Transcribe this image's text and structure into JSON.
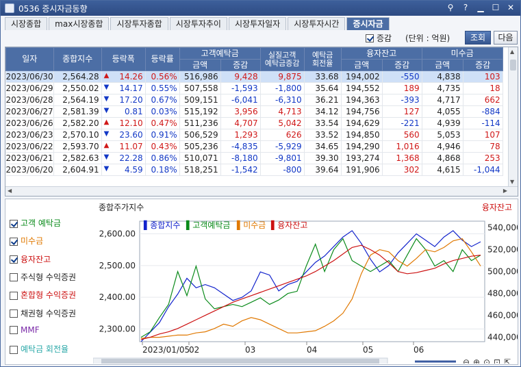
{
  "window": {
    "title": "0536 증시자금동향"
  },
  "tabs": [
    "시장종합",
    "max시장종합",
    "시장투자종합",
    "시장투자추이",
    "시장투자일자",
    "시장투자시간",
    "증시자금"
  ],
  "active_tab": 6,
  "options": {
    "increase_label": "증감",
    "increase_checked": true,
    "unit_label": "(단위 : 억원)",
    "query_button": "조회",
    "next_button": "다음"
  },
  "table": {
    "headers": {
      "date": "일자",
      "index": "종합지수",
      "change": "등락폭",
      "rate": "등락률",
      "deposit": "고객예탁금",
      "real_deposit": "실질고객\n예탁금증감",
      "turnover": "예탁금\n회전율",
      "credit": "융자잔고",
      "unsettled": "미수금",
      "amount": "금액",
      "delta": "증감"
    },
    "rows": [
      [
        "2023/06/30",
        "2,564.28",
        "up",
        "14.26",
        "0.56%",
        "516,986",
        "9,428",
        "9,875",
        "33.68",
        "194,002",
        "-550",
        "4,838",
        "103"
      ],
      [
        "2023/06/29",
        "2,550.02",
        "down",
        "14.17",
        "0.55%",
        "507,558",
        "-1,593",
        "-1,800",
        "35.64",
        "194,552",
        "189",
        "4,735",
        "18"
      ],
      [
        "2023/06/28",
        "2,564.19",
        "down",
        "17.20",
        "0.67%",
        "509,151",
        "-6,041",
        "-6,310",
        "36.21",
        "194,363",
        "-393",
        "4,717",
        "662"
      ],
      [
        "2023/06/27",
        "2,581.39",
        "down",
        "0.81",
        "0.03%",
        "515,192",
        "3,956",
        "4,713",
        "34.12",
        "194,756",
        "127",
        "4,055",
        "-884"
      ],
      [
        "2023/06/26",
        "2,582.20",
        "up",
        "12.10",
        "0.47%",
        "511,236",
        "4,707",
        "5,042",
        "33.54",
        "194,629",
        "-221",
        "4,939",
        "-114"
      ],
      [
        "2023/06/23",
        "2,570.10",
        "down",
        "23.60",
        "0.91%",
        "506,529",
        "1,293",
        "626",
        "33.52",
        "194,850",
        "560",
        "5,053",
        "107"
      ],
      [
        "2023/06/22",
        "2,593.70",
        "up",
        "11.07",
        "0.43%",
        "505,236",
        "-4,835",
        "-5,929",
        "34.65",
        "194,290",
        "1,016",
        "4,946",
        "78"
      ],
      [
        "2023/06/21",
        "2,582.63",
        "down",
        "22.28",
        "0.86%",
        "510,071",
        "-8,180",
        "-9,801",
        "39.30",
        "193,274",
        "1,368",
        "4,868",
        "253"
      ],
      [
        "2023/06/20",
        "2,604.91",
        "down",
        "4.59",
        "0.18%",
        "518,251",
        "-1,542",
        "-800",
        "39.64",
        "191,906",
        "302",
        "4,615",
        "-1,044"
      ]
    ]
  },
  "chart": {
    "left_title": "종합주가지수",
    "right_title": "융자잔고",
    "legend_items": [
      {
        "label": "고객 예탁금",
        "checked": true,
        "color": "#0a8a1a"
      },
      {
        "label": "미수금",
        "checked": true,
        "color": "#e07800"
      },
      {
        "label": "융자잔고",
        "checked": true,
        "color": "#cc1010"
      },
      {
        "label": "주식형 수익증권",
        "checked": false,
        "color": "#222222"
      },
      {
        "label": "혼합형 수익증권",
        "checked": false,
        "color": "#cc1010"
      },
      {
        "label": "채권형 수익증권",
        "checked": false,
        "color": "#222222"
      },
      {
        "label": "MMF",
        "checked": false,
        "color": "#7a2aa8"
      },
      {
        "label": "예탁금 회전율",
        "checked": false,
        "color": "#2aa8a8"
      }
    ],
    "series_legend": [
      {
        "name": "종합지수",
        "color": "#1122cc"
      },
      {
        "name": "고객예탁금",
        "color": "#0a8a1a"
      },
      {
        "name": "미수금",
        "color": "#e07800"
      },
      {
        "name": "융자잔고",
        "color": "#cc1010"
      }
    ],
    "left_ticks": [
      "2,600.00",
      "2,500.00",
      "2,400.00",
      "2,300.00"
    ],
    "right_ticks": [
      "540,000",
      "520,000",
      "500,000",
      "480,000",
      "460,000",
      "440,000"
    ],
    "x_ticks": [
      "2023/01/05",
      "02",
      "03",
      "04",
      "05",
      "06"
    ]
  },
  "chart_data": {
    "type": "line",
    "x_labels": [
      "2023/01/05",
      "02",
      "03",
      "04",
      "05",
      "06"
    ],
    "ylim_left": [
      2260,
      2640
    ],
    "ylim_right": [
      436000,
      546000
    ],
    "series": [
      {
        "name": "종합지수",
        "axis": "left",
        "values": [
          2260,
          2290,
          2320,
          2370,
          2410,
          2460,
          2430,
          2440,
          2430,
          2410,
          2390,
          2400,
          2420,
          2480,
          2470,
          2420,
          2440,
          2450,
          2480,
          2510,
          2530,
          2560,
          2590,
          2610,
          2570,
          2520,
          2480,
          2500,
          2540,
          2570,
          2600,
          2580,
          2560,
          2590,
          2610,
          2580,
          2560,
          2575
        ]
      },
      {
        "name": "고객예탁금",
        "axis": "right",
        "values": [
          440000,
          445000,
          458000,
          470000,
          500000,
          478000,
          505000,
          475000,
          466000,
          468000,
          470000,
          468000,
          472000,
          476000,
          470000,
          474000,
          480000,
          482000,
          505000,
          525000,
          500000,
          520000,
          530000,
          510000,
          505000,
          500000,
          505000,
          510000,
          500000,
          515000,
          530000,
          520000,
          505000,
          510000,
          500000,
          520000,
          510000,
          515000
        ]
      },
      {
        "name": "미수금",
        "axis": "right",
        "values": [
          439000,
          440000,
          440000,
          441000,
          442000,
          442000,
          444000,
          445000,
          448000,
          452000,
          450000,
          455000,
          458000,
          456000,
          452000,
          448000,
          444000,
          444000,
          445000,
          446000,
          450000,
          455000,
          462000,
          475000,
          498000,
          515000,
          520000,
          518000,
          510000,
          505000,
          512000,
          520000,
          518000,
          522000,
          528000,
          530000,
          518000,
          505000
        ]
      },
      {
        "name": "융자잔고",
        "axis": "right",
        "values": [
          438000,
          440000,
          443000,
          445000,
          448000,
          452000,
          456000,
          460000,
          464000,
          468000,
          472000,
          475000,
          478000,
          481000,
          484000,
          487000,
          490000,
          493000,
          496000,
          500000,
          505000,
          510000,
          516000,
          522000,
          524000,
          520000,
          515000,
          508000,
          500000,
          498000,
          499000,
          501000,
          503000,
          507000,
          510000,
          512000,
          514000,
          515000
        ]
      }
    ]
  }
}
